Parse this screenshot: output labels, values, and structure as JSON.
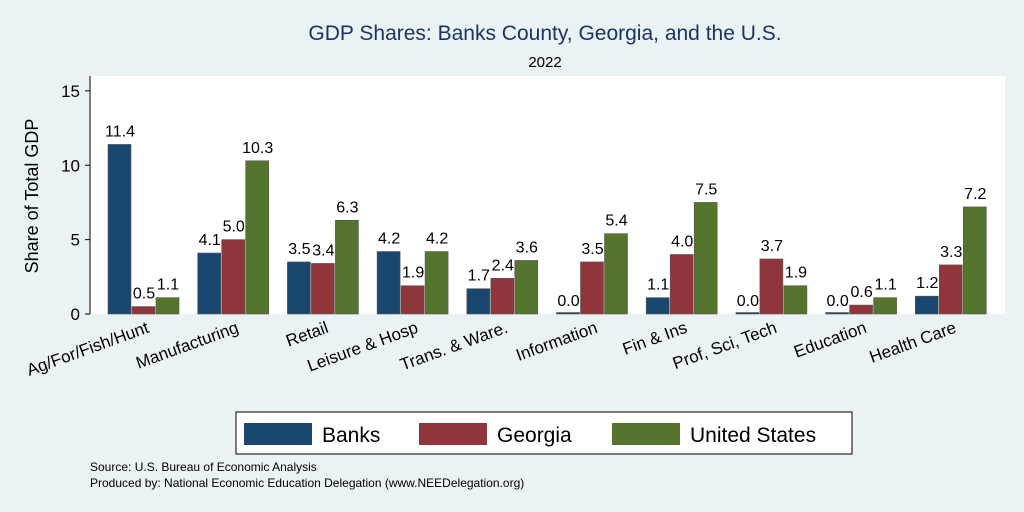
{
  "chart_data": {
    "type": "bar",
    "title": "GDP Shares: Banks County, Georgia, and the U.S.",
    "subtitle": "2022",
    "xlabel": "",
    "ylabel": "Share of Total GDP",
    "ylim": [
      0,
      16
    ],
    "yticks": [
      0,
      5,
      10,
      15
    ],
    "categories": [
      "Ag/For/Fish/Hunt",
      "Manufacturing",
      "Retail",
      "Leisure & Hosp",
      "Trans. & Ware.",
      "Information",
      "Fin & Ins",
      "Prof, Sci, Tech",
      "Education",
      "Health Care"
    ],
    "series": [
      {
        "name": "Banks",
        "color": "#1a476f",
        "values": [
          11.4,
          4.1,
          3.5,
          4.2,
          1.7,
          0.0,
          1.1,
          0.0,
          0.0,
          1.2
        ]
      },
      {
        "name": "Georgia",
        "color": "#90353b",
        "values": [
          0.5,
          5.0,
          3.4,
          1.9,
          2.4,
          3.5,
          4.0,
          3.7,
          0.6,
          3.3
        ]
      },
      {
        "name": "United States",
        "color": "#55752f",
        "values": [
          1.1,
          10.3,
          6.3,
          4.2,
          3.6,
          5.4,
          7.5,
          1.9,
          1.1,
          7.2
        ]
      }
    ],
    "legend_position": "bottom"
  },
  "footer": {
    "source": "Source: U.S. Bureau of Economic Analysis",
    "produced": "Produced by: National Economic Education Delegation (www.NEEDelegation.org)"
  }
}
